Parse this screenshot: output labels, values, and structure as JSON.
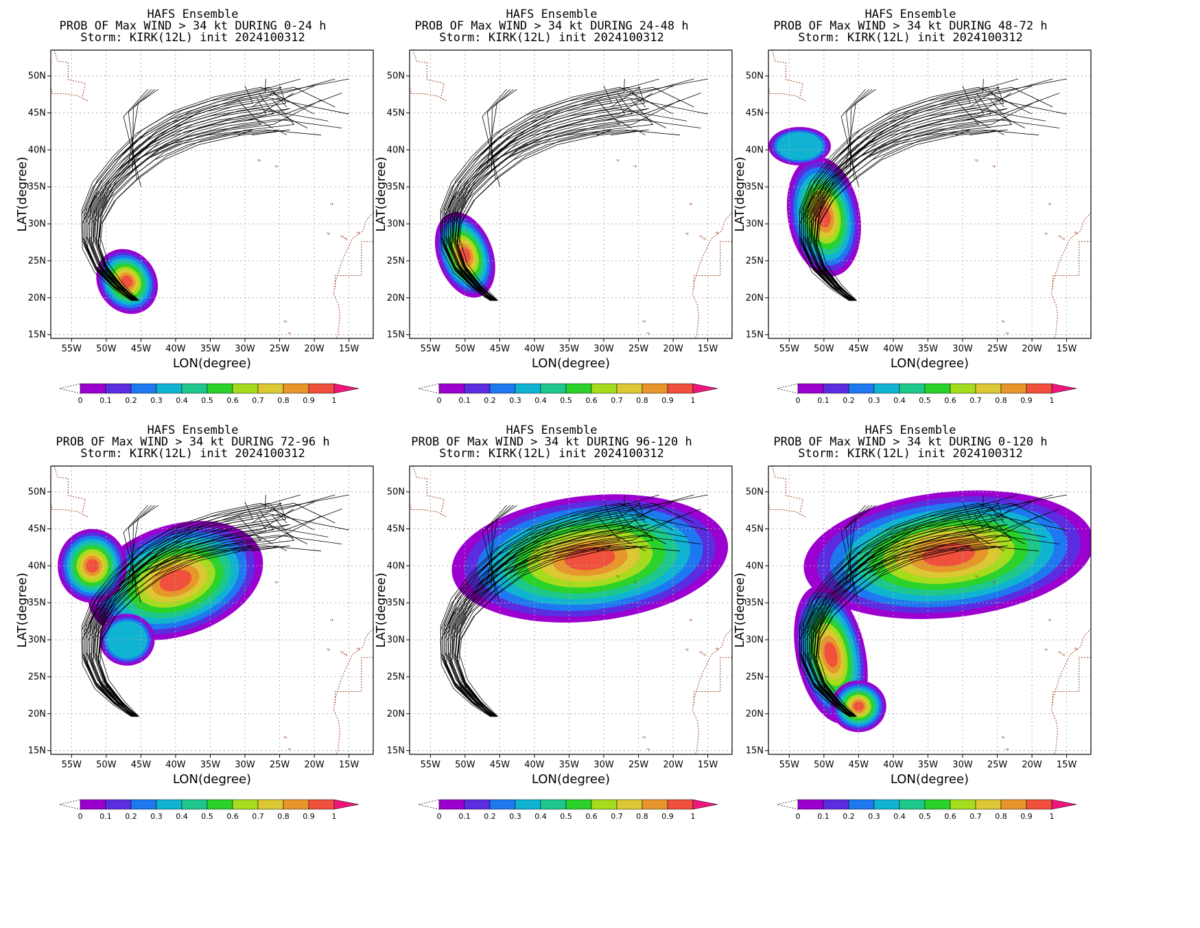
{
  "colorbar": {
    "labels": [
      "0",
      "0.1",
      "0.2",
      "0.3",
      "0.4",
      "0.5",
      "0.6",
      "0.7",
      "0.8",
      "0.9",
      "1"
    ],
    "colors": [
      "#9c00d0",
      "#5a2ee0",
      "#1e78f0",
      "#10b4d2",
      "#1ec88c",
      "#2ad22a",
      "#a6dc1e",
      "#dcc832",
      "#e6962a",
      "#f0503c"
    ],
    "over_color": "#f0147d"
  },
  "map": {
    "lon_ticks": [
      "55W",
      "50W",
      "45W",
      "40W",
      "35W",
      "30W",
      "25W",
      "20W",
      "15W"
    ],
    "lat_ticks": [
      "15N",
      "20N",
      "25N",
      "30N",
      "35N",
      "40N",
      "45N",
      "50N"
    ],
    "xlabel": "LON(degree)",
    "ylabel": "LAT(degree)",
    "land_border_color": "#a04020",
    "grid_color": "#aaaaaa",
    "track_color": "#000000"
  },
  "panels": [
    {
      "title1": "HAFS Ensemble",
      "title2": "PROB OF Max WIND > 34 kt DURING  0-24 h",
      "title3": "Storm: KIRK(12L) init 2024100312"
    },
    {
      "title1": "HAFS Ensemble",
      "title2": "PROB OF Max WIND > 34 kt DURING 24-48 h",
      "title3": "Storm: KIRK(12L) init 2024100312"
    },
    {
      "title1": "HAFS Ensemble",
      "title2": "PROB OF Max WIND > 34 kt DURING 48-72 h",
      "title3": "Storm: KIRK(12L) init 2024100312"
    },
    {
      "title1": "HAFS Ensemble",
      "title2": "PROB OF Max WIND > 34 kt DURING 72-96 h",
      "title3": "Storm: KIRK(12L) init 2024100312"
    },
    {
      "title1": "HAFS Ensemble",
      "title2": "PROB OF Max WIND > 34 kt DURING 96-120 h",
      "title3": "Storm: KIRK(12L) init 2024100312"
    },
    {
      "title1": "HAFS Ensemble",
      "title2": "PROB OF Max WIND > 34 kt DURING 0-120 h",
      "title3": "Storm: KIRK(12L) init 2024100312"
    }
  ]
}
